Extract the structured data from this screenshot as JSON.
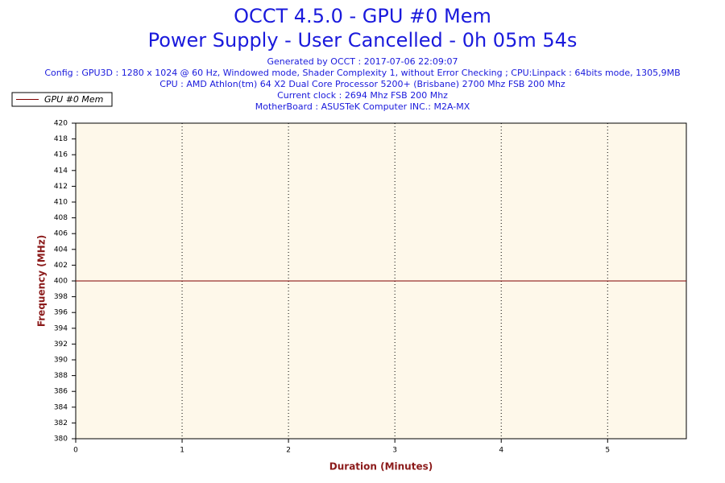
{
  "chart_data": {
    "type": "line",
    "title": "OCCT 4.5.0 - GPU #0 Mem",
    "subtitle": "Power Supply - User Cancelled - 0h 05m 54s",
    "info": [
      "Generated by OCCT : 2017-07-06 22:09:07",
      "Config : GPU3D : 1280 x 1024 @ 60 Hz, Windowed mode, Shader Complexity 1, without Error Checking ; CPU:Linpack : 64bits mode, 1305,9MB",
      "CPU : AMD Athlon(tm) 64 X2 Dual Core Processor 5200+ (Brisbane) 2700 Mhz FSB 200 Mhz",
      "Current clock : 2694 Mhz FSB 200 Mhz",
      "MotherBoard : ASUSTeK Computer INC.: M2A-MX"
    ],
    "x_label": "Duration (Minutes)",
    "y_label": "Frequency (MHz)",
    "x": [
      0,
      5.74
    ],
    "series": [
      {
        "name": "GPU #0 Mem",
        "color": "#800000",
        "values": [
          400,
          400
        ]
      }
    ],
    "xlim": [
      0,
      5.74
    ],
    "xticks": [
      0,
      1,
      2,
      3,
      4,
      5
    ],
    "ylim": [
      380,
      420
    ],
    "yticks": [
      380,
      382,
      384,
      386,
      388,
      390,
      392,
      394,
      396,
      398,
      400,
      402,
      404,
      406,
      408,
      410,
      412,
      414,
      416,
      418,
      420
    ],
    "grid": "x",
    "legend": "top-left"
  }
}
